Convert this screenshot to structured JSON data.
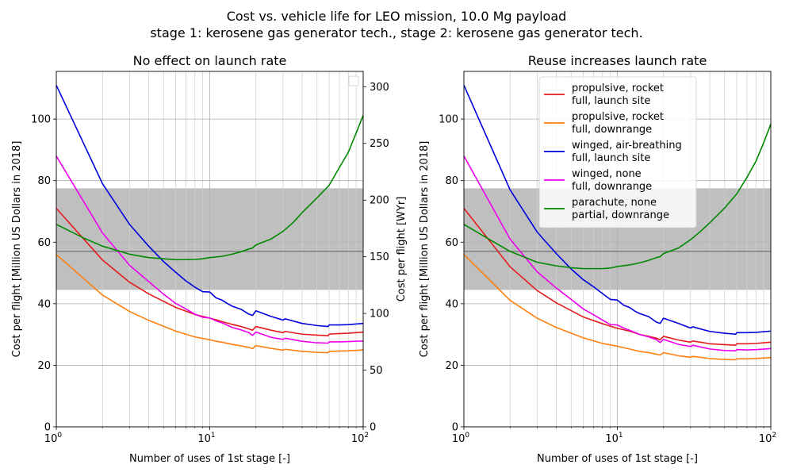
{
  "figure": {
    "suptitle_line1": "Cost vs. vehicle life for LEO mission, 10.0 Mg payload",
    "suptitle_line2": "stage 1: kerosene gas generator tech., stage 2: kerosene gas generator tech."
  },
  "chart_data": [
    {
      "type": "line",
      "title": "No effect on launch rate",
      "xlabel": "Number of uses of 1st stage [-]",
      "ylabel": "Cost per flight [Million US Dollars in 2018]",
      "ylabel_right": "Cost per flight [WYr]",
      "x_scale": "log",
      "xlim": [
        1,
        100
      ],
      "ylim": [
        0,
        115.5
      ],
      "ylim_right": [
        0,
        313.5
      ],
      "xticks": [
        {
          "v": 1,
          "base": "10",
          "exp": "0"
        },
        {
          "v": 10,
          "base": "10",
          "exp": "1"
        },
        {
          "v": 100,
          "base": "10",
          "exp": "2"
        }
      ],
      "yticks": [
        {
          "v": 0,
          "label": "0"
        },
        {
          "v": 20,
          "label": "20"
        },
        {
          "v": 40,
          "label": "40"
        },
        {
          "v": 60,
          "label": "60"
        },
        {
          "v": 80,
          "label": "80"
        },
        {
          "v": 100,
          "label": "100"
        }
      ],
      "yticks_right": [
        {
          "v": 0,
          "label": "0"
        },
        {
          "v": 50,
          "label": "50"
        },
        {
          "v": 100,
          "label": "100"
        },
        {
          "v": 150,
          "label": "150"
        },
        {
          "v": 200,
          "label": "200"
        },
        {
          "v": 250,
          "label": "250"
        },
        {
          "v": 300,
          "label": "300"
        }
      ],
      "grid": true,
      "band": {
        "y_low": 44.5,
        "y_high": 77.5,
        "y_mid": 57,
        "color": "#bfbfbf",
        "line_color": "#808080"
      },
      "legend": "empty box at top-right",
      "series": [
        {
          "color": "#e41a1c",
          "x": [
            1,
            2,
            3,
            4,
            6,
            8,
            10,
            11,
            12,
            14,
            16,
            18,
            19,
            20,
            25,
            30,
            31,
            40,
            50,
            59,
            60,
            70,
            80,
            100
          ],
          "y": [
            71,
            54.2,
            47,
            43.2,
            38.8,
            36.5,
            35.3,
            34.8,
            34.2,
            33.3,
            32.6,
            31.8,
            31.4,
            32.6,
            31.4,
            30.6,
            31,
            30.1,
            29.8,
            29.6,
            30.1,
            30.3,
            30.4,
            30.8
          ]
        },
        {
          "color": "#ff7f0e",
          "x": [
            1,
            2,
            3,
            4,
            6,
            8,
            10,
            11,
            12,
            14,
            16,
            18,
            19,
            20,
            25,
            30,
            31,
            40,
            50,
            59,
            60,
            70,
            80,
            100
          ],
          "y": [
            56,
            42.8,
            37.5,
            34.6,
            31.1,
            29.2,
            28.3,
            27.8,
            27.5,
            26.8,
            26.3,
            25.8,
            25.4,
            26.4,
            25.5,
            24.9,
            25.2,
            24.5,
            24.2,
            24.1,
            24.5,
            24.6,
            24.7,
            25
          ]
        },
        {
          "color": "#0000dd",
          "x": [
            1,
            2,
            3,
            4,
            5,
            6,
            7,
            8,
            9,
            10,
            11,
            12,
            13,
            14,
            16,
            18,
            19,
            20,
            25,
            30,
            31,
            40,
            50,
            59,
            60,
            70,
            80,
            100
          ],
          "y": [
            111,
            79,
            65.8,
            58.7,
            53.7,
            50.2,
            47.4,
            45.4,
            43.9,
            43.8,
            41.9,
            41.2,
            40.1,
            39.2,
            38.2,
            36.6,
            36.2,
            37.7,
            35.9,
            34.7,
            35.1,
            33.6,
            32.9,
            32.6,
            33.1,
            33.1,
            33.2,
            33.6
          ]
        },
        {
          "color": "#ee00ee",
          "x": [
            1,
            2,
            3,
            4,
            5,
            6,
            7,
            8,
            9,
            10,
            11,
            12,
            14,
            16,
            18,
            19,
            20,
            25,
            30,
            31,
            40,
            50,
            59,
            60,
            70,
            80,
            100
          ],
          "y": [
            88,
            63,
            52.5,
            47.2,
            43.1,
            40.1,
            38.3,
            36.6,
            35.6,
            35.4,
            34.4,
            33.8,
            32.3,
            31.5,
            30.6,
            29.7,
            30.8,
            29.1,
            28.4,
            28.8,
            27.8,
            27.3,
            27.2,
            27.6,
            27.6,
            27.7,
            27.9
          ]
        },
        {
          "color": "#008800",
          "x": [
            1,
            1.5,
            2,
            3,
            4,
            5,
            6,
            8,
            9,
            10,
            12,
            14,
            16,
            18,
            19,
            20,
            25,
            30,
            35,
            40,
            50,
            60,
            70,
            80,
            90,
            100
          ],
          "y": [
            65.8,
            61.4,
            58.7,
            56.1,
            55,
            54.6,
            54.3,
            54.4,
            54.6,
            55,
            55.4,
            56.1,
            56.9,
            57.8,
            58.1,
            59.1,
            61,
            63.5,
            66.4,
            69.6,
            74.4,
            78.5,
            84.3,
            89.2,
            95.5,
            101.2
          ]
        }
      ]
    },
    {
      "type": "line",
      "title": "Reuse increases launch rate",
      "xlabel": "Number of uses of 1st stage [-]",
      "ylabel": "Cost per flight [Million US Dollars in 2018]",
      "x_scale": "log",
      "xlim": [
        1,
        100
      ],
      "ylim": [
        0,
        115.5
      ],
      "xticks": [
        {
          "v": 1,
          "base": "10",
          "exp": "0"
        },
        {
          "v": 10,
          "base": "10",
          "exp": "1"
        },
        {
          "v": 100,
          "base": "10",
          "exp": "2"
        }
      ],
      "yticks": [
        {
          "v": 0,
          "label": "0"
        },
        {
          "v": 20,
          "label": "20"
        },
        {
          "v": 40,
          "label": "40"
        },
        {
          "v": 60,
          "label": "60"
        },
        {
          "v": 80,
          "label": "80"
        },
        {
          "v": 100,
          "label": "100"
        }
      ],
      "grid": true,
      "band": {
        "y_low": 44.5,
        "y_high": 77.5,
        "y_mid": 57,
        "color": "#bfbfbf",
        "line_color": "#808080"
      },
      "legend": "top-right",
      "series": [
        {
          "name": "propulsive, rocket\nfull, launch site",
          "color": "#e41a1c",
          "x": [
            1,
            2,
            3,
            4,
            6,
            8,
            10,
            12,
            14,
            16,
            18,
            19,
            20,
            25,
            30,
            31,
            40,
            50,
            59,
            60,
            70,
            80,
            100
          ],
          "y": [
            71,
            52,
            44.3,
            40.3,
            35.7,
            33.5,
            32,
            31.1,
            30,
            29.4,
            28.8,
            28.3,
            29.4,
            28.2,
            27.5,
            27.9,
            27,
            26.7,
            26.5,
            27,
            27,
            27.1,
            27.5
          ]
        },
        {
          "name": "propulsive, rocket\nfull, downrange",
          "color": "#ff7f0e",
          "x": [
            1,
            2,
            3,
            4,
            6,
            8,
            10,
            12,
            14,
            16,
            18,
            19,
            20,
            25,
            30,
            31,
            40,
            50,
            59,
            60,
            70,
            80,
            100
          ],
          "y": [
            56,
            41.1,
            35.3,
            32.3,
            28.9,
            27.1,
            26.2,
            25.3,
            24.5,
            24.1,
            23.6,
            23.3,
            24.1,
            23.1,
            22.6,
            22.9,
            22.2,
            21.9,
            21.8,
            22.1,
            22.1,
            22.2,
            22.5
          ]
        },
        {
          "name": "winged, air-breathing\nfull, launch site",
          "color": "#0000dd",
          "x": [
            1,
            2,
            3,
            4,
            5,
            6,
            7,
            8,
            9,
            10,
            11,
            12,
            13,
            14,
            16,
            18,
            19,
            20,
            25,
            30,
            31,
            40,
            50,
            59,
            60,
            70,
            80,
            100
          ],
          "y": [
            111,
            77,
            63.3,
            56.3,
            51.3,
            47.8,
            45.5,
            43.3,
            41.4,
            41.2,
            39.5,
            38.8,
            37.6,
            36.8,
            35.8,
            34,
            33.6,
            35.3,
            33.6,
            32.1,
            32.5,
            31,
            30.4,
            30.1,
            30.6,
            30.6,
            30.7,
            31.1
          ]
        },
        {
          "name": "winged, none\nfull, downrange",
          "color": "#ee00ee",
          "x": [
            1,
            2,
            3,
            4,
            5,
            6,
            7,
            8,
            9,
            10,
            11,
            12,
            14,
            16,
            18,
            19,
            20,
            25,
            30,
            31,
            40,
            50,
            59,
            60,
            70,
            80,
            100
          ],
          "y": [
            88,
            61,
            50.4,
            45.1,
            41.4,
            38.3,
            36.4,
            34.7,
            33.2,
            33.1,
            32.1,
            31.4,
            30,
            29.2,
            28.3,
            27.4,
            28.4,
            26.8,
            26.1,
            26.5,
            25.3,
            24.8,
            24.7,
            25.1,
            25,
            25.1,
            25.4
          ]
        },
        {
          "name": "parachute, none\npartial, downrange",
          "color": "#008800",
          "x": [
            1,
            1.5,
            2,
            3,
            4,
            5,
            6,
            7,
            8,
            9,
            10,
            12,
            14,
            16,
            18,
            19,
            20,
            25,
            30,
            35,
            40,
            50,
            60,
            70,
            80,
            90,
            100
          ],
          "y": [
            65.8,
            60.6,
            57,
            53.5,
            52.3,
            51.7,
            51.4,
            51.4,
            51.4,
            51.6,
            52.1,
            52.6,
            53.3,
            54.1,
            55,
            55.3,
            56.3,
            58.1,
            60.8,
            63.6,
            66.3,
            71.1,
            75.7,
            81.1,
            86.3,
            92.4,
            98.4
          ]
        }
      ]
    }
  ]
}
